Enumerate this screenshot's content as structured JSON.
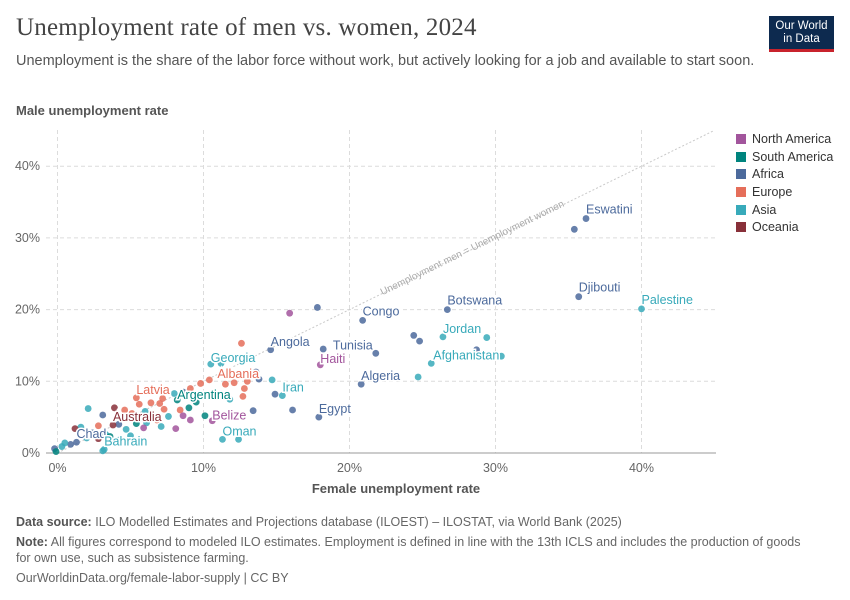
{
  "header": {
    "title": "Unemployment rate of men vs. women, 2024",
    "subtitle": "Unemployment is the share of the labor force without work, but actively looking for a job and available to start soon.",
    "logo_line1": "Our World",
    "logo_line2": "in Data"
  },
  "footer": {
    "source_label": "Data source:",
    "source_text": "ILO Modelled Estimates and Projections database (ILOEST) – ILOSTAT, via World Bank (2025)",
    "note_label": "Note:",
    "note_text": "All figures correspond to modeled ILO estimates. Employment is defined in line with the 13th ICLS and includes the production of goods for own use, such as subsistence farming.",
    "url": "OurWorldinData.org/female-labor-supply | CC BY"
  },
  "colors": {
    "North America": "#a2559c",
    "South America": "#00847e",
    "Africa": "#4c6a9c",
    "Europe": "#e56e5a",
    "Asia": "#38aaba",
    "Oceania": "#883039"
  },
  "chart_data": {
    "type": "scatter",
    "title": "Unemployment rate of men vs. women, 2024",
    "xlabel": "Female unemployment rate",
    "ylabel": "Male unemployment rate",
    "xlim": [
      -0.5,
      45
    ],
    "ylim": [
      0,
      45
    ],
    "xticks": [
      "0%",
      "10%",
      "20%",
      "30%",
      "40%"
    ],
    "yticks": [
      "0%",
      "10%",
      "20%",
      "30%",
      "40%"
    ],
    "tick_values": [
      0,
      10,
      20,
      30,
      40
    ],
    "reference_line_label": "Unemployment men = Unemployment women",
    "legend": [
      "North America",
      "South America",
      "Africa",
      "Europe",
      "Asia",
      "Oceania"
    ],
    "labeled_points": [
      {
        "name": "Eswatini",
        "region": "Africa",
        "x": 36.2,
        "y": 32.7
      },
      {
        "name": "Djibouti",
        "region": "Africa",
        "x": 35.7,
        "y": 21.8
      },
      {
        "name": "Palestine",
        "region": "Asia",
        "x": 40.0,
        "y": 20.1
      },
      {
        "name": "Botswana",
        "region": "Africa",
        "x": 26.7,
        "y": 20.0
      },
      {
        "name": "Congo",
        "region": "Africa",
        "x": 20.9,
        "y": 18.5
      },
      {
        "name": "Jordan",
        "region": "Asia",
        "x": 26.4,
        "y": 16.2
      },
      {
        "name": "Angola",
        "region": "Africa",
        "x": 14.6,
        "y": 14.4
      },
      {
        "name": "Tunisia",
        "region": "Africa",
        "x": 21.8,
        "y": 13.9
      },
      {
        "name": "Afghanistan",
        "region": "Asia",
        "x": 25.6,
        "y": 12.5
      },
      {
        "name": "Haiti",
        "region": "North America",
        "x": 18.0,
        "y": 12.3
      },
      {
        "name": "Georgia",
        "region": "Asia",
        "x": 10.5,
        "y": 12.4
      },
      {
        "name": "Albania",
        "region": "Europe",
        "x": 10.4,
        "y": 10.2
      },
      {
        "name": "Algeria",
        "region": "Africa",
        "x": 20.8,
        "y": 9.6
      },
      {
        "name": "Iran",
        "region": "Asia",
        "x": 15.4,
        "y": 8.0
      },
      {
        "name": "Latvia",
        "region": "Europe",
        "x": 5.4,
        "y": 7.7
      },
      {
        "name": "Argentina",
        "region": "South America",
        "x": 8.2,
        "y": 7.4
      },
      {
        "name": "Egypt",
        "region": "Africa",
        "x": 17.9,
        "y": 5.0
      },
      {
        "name": "Belize",
        "region": "North America",
        "x": 10.6,
        "y": 4.5
      },
      {
        "name": "Australia",
        "region": "Oceania",
        "x": 3.8,
        "y": 3.9
      },
      {
        "name": "Oman",
        "region": "Asia",
        "x": 11.3,
        "y": 1.9
      },
      {
        "name": "Chad",
        "region": "Africa",
        "x": 1.3,
        "y": 1.5
      },
      {
        "name": "Bahrain",
        "region": "Asia",
        "x": 3.2,
        "y": 0.5
      }
    ],
    "points": [
      {
        "region": "Africa",
        "x": 35.4,
        "y": 31.2
      },
      {
        "region": "Africa",
        "x": 17.8,
        "y": 20.3
      },
      {
        "region": "North America",
        "x": 15.9,
        "y": 19.5
      },
      {
        "region": "Africa",
        "x": 24.4,
        "y": 16.4
      },
      {
        "region": "Africa",
        "x": 24.8,
        "y": 15.6
      },
      {
        "region": "Asia",
        "x": 29.4,
        "y": 16.1
      },
      {
        "region": "Asia",
        "x": 30.4,
        "y": 13.5
      },
      {
        "region": "Africa",
        "x": 28.7,
        "y": 14.4
      },
      {
        "region": "Africa",
        "x": 18.2,
        "y": 14.5
      },
      {
        "region": "Europe",
        "x": 12.6,
        "y": 15.3
      },
      {
        "region": "Asia",
        "x": 11.2,
        "y": 12.5
      },
      {
        "region": "Africa",
        "x": 13.6,
        "y": 11.3
      },
      {
        "region": "Asia",
        "x": 24.7,
        "y": 10.6
      },
      {
        "region": "Africa",
        "x": 13.8,
        "y": 10.3
      },
      {
        "region": "Asia",
        "x": 14.7,
        "y": 10.2
      },
      {
        "region": "Europe",
        "x": 13.0,
        "y": 10.0
      },
      {
        "region": "Europe",
        "x": 12.1,
        "y": 9.8
      },
      {
        "region": "Europe",
        "x": 11.5,
        "y": 9.6
      },
      {
        "region": "Europe",
        "x": 9.8,
        "y": 9.7
      },
      {
        "region": "Europe",
        "x": 12.8,
        "y": 9.0
      },
      {
        "region": "Africa",
        "x": 14.9,
        "y": 8.2
      },
      {
        "region": "Europe",
        "x": 12.7,
        "y": 7.9
      },
      {
        "region": "Asia",
        "x": 11.8,
        "y": 7.5
      },
      {
        "region": "Europe",
        "x": 9.1,
        "y": 9.0
      },
      {
        "region": "Africa",
        "x": 8.6,
        "y": 8.5
      },
      {
        "region": "Asia",
        "x": 8.0,
        "y": 8.3
      },
      {
        "region": "Europe",
        "x": 7.2,
        "y": 7.6
      },
      {
        "region": "Europe",
        "x": 7.0,
        "y": 6.9
      },
      {
        "region": "Europe",
        "x": 6.4,
        "y": 7.0
      },
      {
        "region": "Europe",
        "x": 5.6,
        "y": 6.8
      },
      {
        "region": "South America",
        "x": 9.5,
        "y": 7.1
      },
      {
        "region": "South America",
        "x": 9.0,
        "y": 6.3
      },
      {
        "region": "Europe",
        "x": 8.4,
        "y": 6.0
      },
      {
        "region": "Europe",
        "x": 7.3,
        "y": 6.1
      },
      {
        "region": "Asia",
        "x": 7.6,
        "y": 5.1
      },
      {
        "region": "North America",
        "x": 8.6,
        "y": 5.2
      },
      {
        "region": "South America",
        "x": 10.1,
        "y": 5.2
      },
      {
        "region": "Africa",
        "x": 13.4,
        "y": 5.9
      },
      {
        "region": "North America",
        "x": 9.1,
        "y": 4.6
      },
      {
        "region": "Europe",
        "x": 6.8,
        "y": 4.6
      },
      {
        "region": "Asia",
        "x": 6.0,
        "y": 5.8
      },
      {
        "region": "Europe",
        "x": 5.1,
        "y": 5.5
      },
      {
        "region": "Africa",
        "x": 3.1,
        "y": 5.3
      },
      {
        "region": "Oceania",
        "x": 3.9,
        "y": 6.3
      },
      {
        "region": "Europe",
        "x": 4.6,
        "y": 6.0
      },
      {
        "region": "Asia",
        "x": 2.1,
        "y": 6.2
      },
      {
        "region": "South America",
        "x": 5.4,
        "y": 4.1
      },
      {
        "region": "Asia",
        "x": 6.1,
        "y": 4.2
      },
      {
        "region": "North America",
        "x": 5.9,
        "y": 3.5
      },
      {
        "region": "Asia",
        "x": 7.1,
        "y": 3.7
      },
      {
        "region": "North America",
        "x": 8.1,
        "y": 3.4
      },
      {
        "region": "Asia",
        "x": 4.7,
        "y": 3.3
      },
      {
        "region": "Africa",
        "x": 4.2,
        "y": 4.0
      },
      {
        "region": "Europe",
        "x": 2.8,
        "y": 3.8
      },
      {
        "region": "Asia",
        "x": 1.6,
        "y": 3.6
      },
      {
        "region": "Oceania",
        "x": 1.2,
        "y": 3.4
      },
      {
        "region": "Africa",
        "x": 2.4,
        "y": 2.8
      },
      {
        "region": "Asia",
        "x": 3.3,
        "y": 2.6
      },
      {
        "region": "Asia",
        "x": 2.0,
        "y": 2.1
      },
      {
        "region": "Oceania",
        "x": 2.8,
        "y": 2.0
      },
      {
        "region": "South America",
        "x": 3.6,
        "y": 2.3
      },
      {
        "region": "Asia",
        "x": 4.2,
        "y": 1.8
      },
      {
        "region": "Asia",
        "x": 5.0,
        "y": 2.4
      },
      {
        "region": "Africa",
        "x": 0.9,
        "y": 1.2
      },
      {
        "region": "Asia",
        "x": 0.5,
        "y": 1.4
      },
      {
        "region": "Africa",
        "x": -0.2,
        "y": 0.6
      },
      {
        "region": "South America",
        "x": -0.1,
        "y": 0.2
      },
      {
        "region": "Asia",
        "x": 0.3,
        "y": 0.9
      },
      {
        "region": "Asia",
        "x": 12.4,
        "y": 1.9
      },
      {
        "region": "Asia",
        "x": 3.1,
        "y": 0.3
      },
      {
        "region": "Africa",
        "x": 16.1,
        "y": 6.0
      }
    ]
  }
}
